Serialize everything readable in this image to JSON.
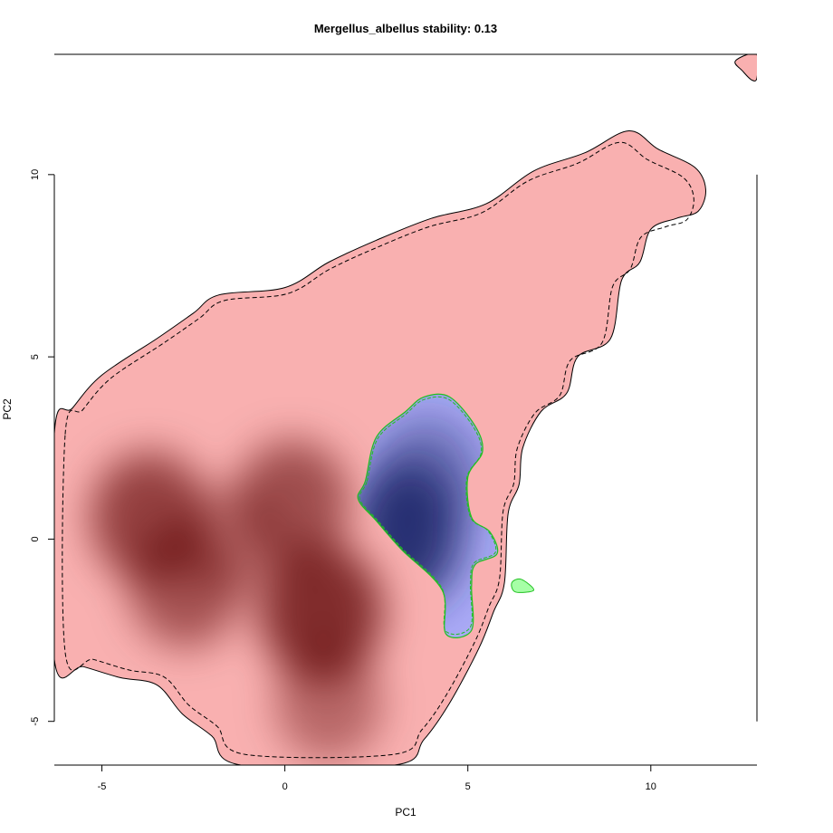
{
  "chart_data": {
    "type": "heatmap",
    "title": "Mergellus_albellus stability: 0.13",
    "xlabel": "PC1",
    "ylabel": "PC2",
    "xlim": [
      -6.3,
      12.9
    ],
    "ylim": [
      -6.2,
      13.3
    ],
    "x_ticks": [
      -5,
      0,
      5,
      10
    ],
    "y_ticks": [
      -5,
      0,
      5,
      10
    ],
    "colors": {
      "background_density": "#f9b0b0",
      "background_density_peak": "#5a0000",
      "focal_density": "#aaaaf6",
      "focal_density_peak": "#232a6e",
      "background_outline": "#000000",
      "focal_outline": "#20c020"
    },
    "background_region": [
      [
        -6.3,
        2.9
      ],
      [
        -5.8,
        3.6
      ],
      [
        -5,
        4.5
      ],
      [
        -3.5,
        5.5
      ],
      [
        -2.5,
        6.2
      ],
      [
        -1.8,
        6.7
      ],
      [
        0,
        6.9
      ],
      [
        1.2,
        7.6
      ],
      [
        2.5,
        8.2
      ],
      [
        4,
        8.8
      ],
      [
        5.5,
        9.2
      ],
      [
        6.8,
        10.1
      ],
      [
        8.2,
        10.6
      ],
      [
        9.4,
        11.2
      ],
      [
        10.2,
        10.7
      ],
      [
        11.2,
        10.2
      ],
      [
        11.5,
        9.6
      ],
      [
        11.3,
        9.0
      ],
      [
        10.7,
        8.8
      ],
      [
        10.0,
        8.5
      ],
      [
        9.7,
        7.6
      ],
      [
        9.2,
        7.1
      ],
      [
        8.9,
        5.5
      ],
      [
        8.0,
        5.0
      ],
      [
        7.7,
        4.0
      ],
      [
        7.0,
        3.5
      ],
      [
        6.5,
        2.5
      ],
      [
        6.4,
        1.5
      ],
      [
        6.1,
        0.7
      ],
      [
        6.0,
        -1.2
      ],
      [
        5.7,
        -2.0
      ],
      [
        5.3,
        -3.0
      ],
      [
        4.5,
        -4.5
      ],
      [
        3.8,
        -5.5
      ],
      [
        3.0,
        -6.2
      ],
      [
        -1.2,
        -6.2
      ],
      [
        -2.0,
        -5.4
      ],
      [
        -2.8,
        -4.8
      ],
      [
        -3.5,
        -4.0
      ],
      [
        -4.5,
        -3.8
      ],
      [
        -5.5,
        -3.5
      ],
      [
        -6.3,
        -3.3
      ]
    ],
    "background_small_region": [
      [
        12.3,
        13.1
      ],
      [
        12.5,
        12.85
      ],
      [
        12.75,
        12.6
      ],
      [
        12.9,
        12.65
      ],
      [
        12.9,
        13.3
      ],
      [
        12.65,
        13.3
      ]
    ],
    "background_peaks": [
      {
        "x": 1.0,
        "y": -2.0,
        "strength": 1.0
      },
      {
        "x": -3.7,
        "y": 0.6,
        "strength": 0.85
      },
      {
        "x": 0.2,
        "y": 1.0,
        "strength": 0.75
      },
      {
        "x": -2.7,
        "y": -1.3,
        "strength": 0.7
      },
      {
        "x": 1.2,
        "y": -4.5,
        "strength": 0.55
      },
      {
        "x": -1.5,
        "y": 0.0,
        "strength": 0.45
      }
    ],
    "focal_region": [
      [
        2.2,
        1.6
      ],
      [
        2.5,
        2.8
      ],
      [
        3.3,
        3.5
      ],
      [
        3.8,
        3.9
      ],
      [
        4.5,
        3.9
      ],
      [
        5.2,
        3.1
      ],
      [
        5.4,
        2.4
      ],
      [
        5.0,
        1.7
      ],
      [
        5.1,
        0.6
      ],
      [
        5.6,
        0.2
      ],
      [
        5.8,
        -0.4
      ],
      [
        5.2,
        -0.7
      ],
      [
        5.1,
        -1.3
      ],
      [
        5.1,
        -2.5
      ],
      [
        4.4,
        -2.6
      ],
      [
        4.3,
        -1.4
      ],
      [
        3.2,
        -0.3
      ],
      [
        2.5,
        0.5
      ],
      [
        2.0,
        1.1
      ]
    ],
    "focal_small_region": [
      [
        6.2,
        -1.2
      ],
      [
        6.45,
        -1.1
      ],
      [
        6.8,
        -1.4
      ],
      [
        6.3,
        -1.45
      ]
    ],
    "focal_peak": {
      "x": 3.3,
      "y": 0.2,
      "strength": 1.0
    }
  }
}
